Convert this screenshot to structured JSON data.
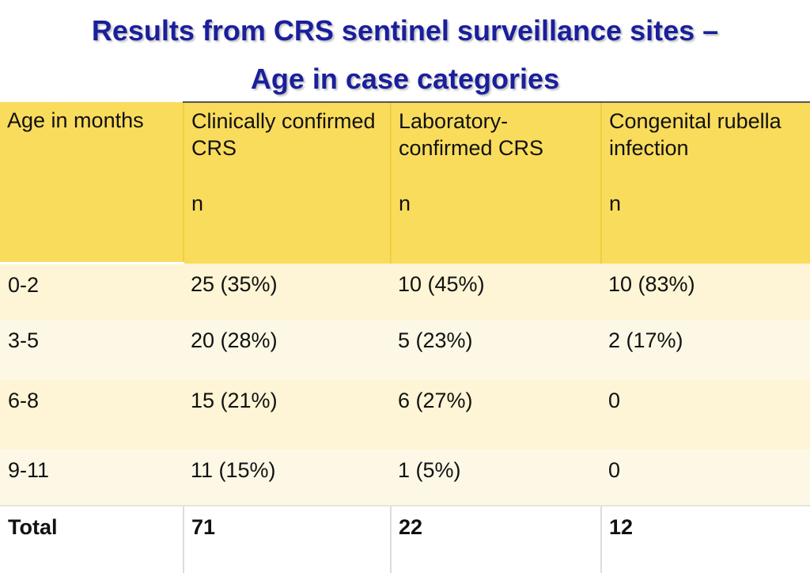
{
  "title": {
    "line1": "Results from CRS sentinel surveillance sites –",
    "line2": "Age in case categories"
  },
  "colors": {
    "title": "#1a1f9c",
    "header_bg": "#f9dc5c",
    "row_light": "#fdf5d5",
    "row_lighter": "#fdf8e6"
  },
  "table": {
    "headers": [
      {
        "label": "Age in months",
        "sub": ""
      },
      {
        "label": "Clinically confirmed CRS",
        "sub": "n"
      },
      {
        "label": "Laboratory-confirmed CRS",
        "sub": "n"
      },
      {
        "label": "Congenital rubella infection",
        "sub": "n"
      }
    ],
    "rows": [
      [
        "0-2",
        "25 (35%)",
        "10 (45%)",
        "10 (83%)"
      ],
      [
        "3-5",
        "20 (28%)",
        "5 (23%)",
        "2 (17%)"
      ],
      [
        "6-8",
        "15 (21%)",
        "6 (27%)",
        "0"
      ],
      [
        "9-11",
        "11 (15%)",
        "1 (5%)",
        "0"
      ]
    ],
    "total": [
      "Total",
      "71",
      "22",
      "12"
    ]
  }
}
